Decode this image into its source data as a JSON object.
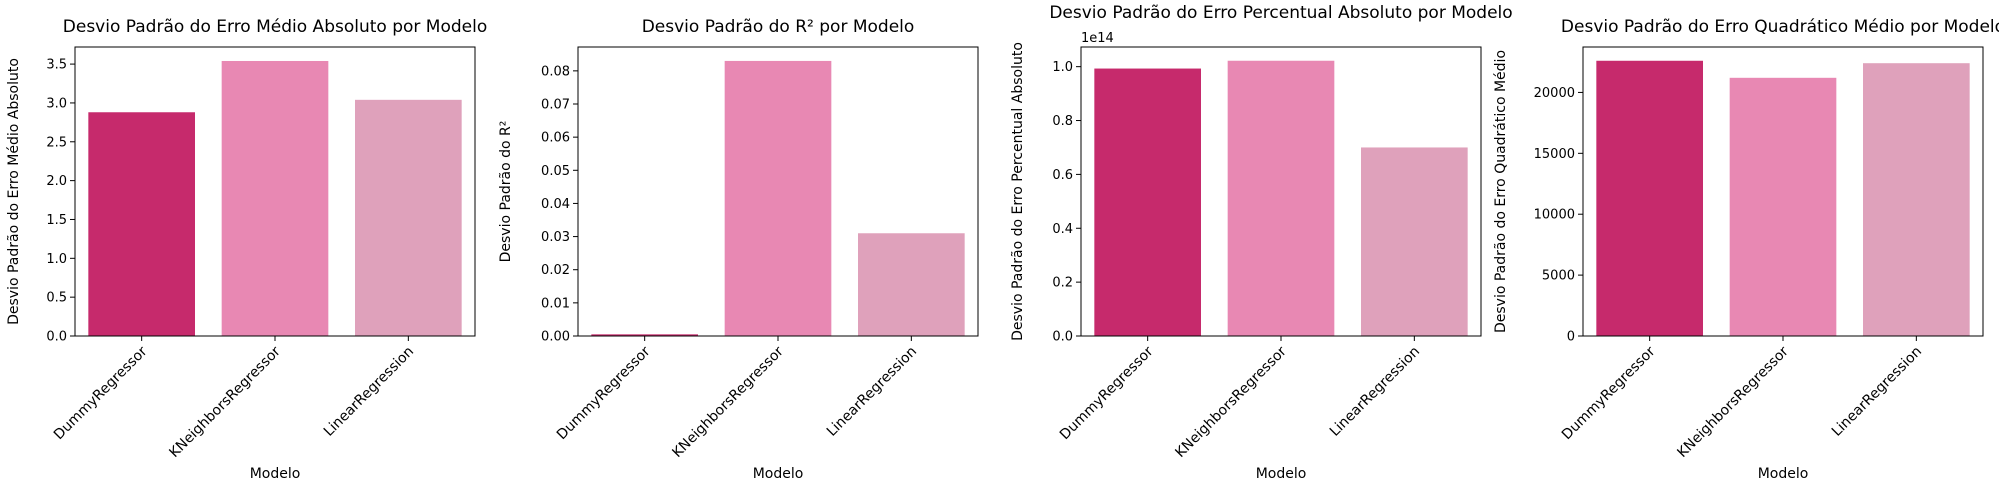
{
  "chart_data": [
    {
      "type": "bar",
      "title": "Desvio Padrão do Erro Médio Absoluto por Modelo",
      "xlabel": "Modelo",
      "ylabel": "Desvio Padrão do Erro Médio Absoluto",
      "categories": [
        "DummyRegressor",
        "KNeighborsRegressor",
        "LinearRegression"
      ],
      "values": [
        2.88,
        3.54,
        3.04
      ],
      "ylim": [
        0,
        3.72
      ],
      "yticks": [
        0.0,
        0.5,
        1.0,
        1.5,
        2.0,
        2.5,
        3.0,
        3.5
      ],
      "ytick_labels": [
        "0.0",
        "0.5",
        "1.0",
        "1.5",
        "2.0",
        "2.5",
        "3.0",
        "3.5"
      ],
      "y_offset_label": "",
      "colors": [
        "#c62a6c",
        "#e888b3",
        "#dfa1bb"
      ]
    },
    {
      "type": "bar",
      "title": "Desvio Padrão do R² por Modelo",
      "xlabel": "Modelo",
      "ylabel": "Desvio Padrão do R²",
      "categories": [
        "DummyRegressor",
        "KNeighborsRegressor",
        "LinearRegression"
      ],
      "values": [
        0.0005,
        0.083,
        0.031
      ],
      "ylim": [
        0,
        0.0872
      ],
      "yticks": [
        0.0,
        0.01,
        0.02,
        0.03,
        0.04,
        0.05,
        0.06,
        0.07,
        0.08
      ],
      "ytick_labels": [
        "0.00",
        "0.01",
        "0.02",
        "0.03",
        "0.04",
        "0.05",
        "0.06",
        "0.07",
        "0.08"
      ],
      "y_offset_label": "",
      "colors": [
        "#c62a6c",
        "#e888b3",
        "#dfa1bb"
      ]
    },
    {
      "type": "bar",
      "title": "Desvio Padrão do Erro Percentual Absoluto por Modelo",
      "xlabel": "Modelo",
      "ylabel": "Desvio Padrão do Erro Percentual Absoluto",
      "categories": [
        "DummyRegressor",
        "KNeighborsRegressor",
        "LinearRegression"
      ],
      "values": [
        0.993,
        1.022,
        0.7
      ],
      "ylim": [
        0,
        1.073
      ],
      "yticks": [
        0.0,
        0.2,
        0.4,
        0.6,
        0.8,
        1.0
      ],
      "ytick_labels": [
        "0.0",
        "0.2",
        "0.4",
        "0.6",
        "0.8",
        "1.0"
      ],
      "y_offset_label": "1e14",
      "colors": [
        "#c62a6c",
        "#e888b3",
        "#dfa1bb"
      ]
    },
    {
      "type": "bar",
      "title": "Desvio Padrão do Erro Quadrático Médio por Modelo",
      "xlabel": "Modelo",
      "ylabel": "Desvio Padrão do Erro Quadrático Médio",
      "categories": [
        "DummyRegressor",
        "KNeighborsRegressor",
        "LinearRegression"
      ],
      "values": [
        22600,
        21200,
        22400
      ],
      "ylim": [
        0,
        23730
      ],
      "yticks": [
        0,
        5000,
        10000,
        15000,
        20000
      ],
      "ytick_labels": [
        "0",
        "5000",
        "10000",
        "15000",
        "20000"
      ],
      "y_offset_label": "",
      "colors": [
        "#c62a6c",
        "#e888b3",
        "#dfa1bb"
      ]
    }
  ]
}
